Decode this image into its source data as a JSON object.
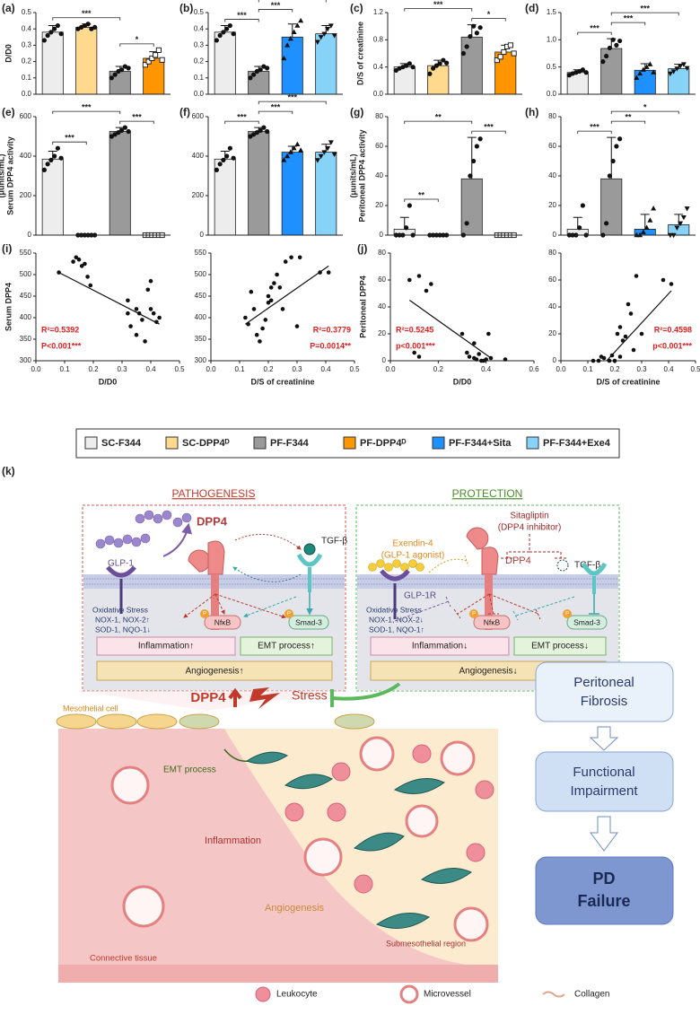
{
  "legend": [
    {
      "name": "SC-F344",
      "color": "#ededed",
      "marker": "circle"
    },
    {
      "name": "SC-DPP4ᴰ",
      "color": "#ffd98e",
      "marker": "circle"
    },
    {
      "name": "PF-F344",
      "color": "#9a9a9a",
      "marker": "circle"
    },
    {
      "name": "PF-DPP4ᴰ",
      "color": "#ff9500",
      "marker": "square-open"
    },
    {
      "name": "PF-F344+Sita",
      "color": "#1e90ff",
      "marker": "triangle"
    },
    {
      "name": "PF-F344+Exe4",
      "color": "#87d3f8",
      "marker": "triangle-down"
    }
  ],
  "chart_data": [
    {
      "type": "bar",
      "panel": "(a)",
      "ylabel": "D/D0",
      "groups": [
        "SC-F344",
        "SC-DPP4ᴰ",
        "PF-F344",
        "PF-DPP4ᴰ"
      ],
      "values": [
        0.38,
        0.41,
        0.14,
        0.22
      ],
      "errors": [
        0.04,
        0.02,
        0.03,
        0.04
      ],
      "points": [
        [
          0.33,
          0.36,
          0.38,
          0.4,
          0.42,
          0.37
        ],
        [
          0.4,
          0.41,
          0.42,
          0.43,
          0.4,
          0.41
        ],
        [
          0.1,
          0.12,
          0.14,
          0.15,
          0.17,
          0.16
        ],
        [
          0.18,
          0.2,
          0.22,
          0.24,
          0.27,
          0.21
        ]
      ],
      "ylim": [
        0,
        0.5
      ],
      "yticks": [
        {
          "value": 0,
          "label": "0.0"
        },
        0.1,
        0.2,
        0.3,
        0.4,
        0.5
      ],
      "significance": [
        {
          "from": "PF-F344",
          "to": "PF-DPP4ᴰ",
          "label": "*"
        },
        {
          "from": "SC-F344",
          "to": "PF-F344",
          "label": "***"
        }
      ]
    },
    {
      "type": "bar",
      "panel": "(b)",
      "groups": [
        "SC-F344",
        "PF-F344",
        "PF-F344+Sita",
        "PF-F344+Exe4"
      ],
      "values": [
        0.38,
        0.14,
        0.35,
        0.37
      ],
      "errors": [
        0.04,
        0.03,
        0.08,
        0.05
      ],
      "points": [
        [
          0.33,
          0.36,
          0.38,
          0.4,
          0.42,
          0.37
        ],
        [
          0.1,
          0.12,
          0.14,
          0.15,
          0.17,
          0.16
        ],
        [
          0.22,
          0.3,
          0.34,
          0.38,
          0.42,
          0.45
        ],
        [
          0.32,
          0.35,
          0.37,
          0.4,
          0.42,
          0.36
        ]
      ],
      "ylim": [
        0,
        0.5
      ],
      "yticks": [
        {
          "value": 0,
          "label": "0.0"
        },
        0.1,
        0.2,
        0.3,
        0.4,
        0.5
      ],
      "significance": [
        {
          "from": "SC-F344",
          "to": "PF-F344",
          "label": "***"
        },
        {
          "from": "PF-F344",
          "to": "PF-F344+Sita",
          "label": "***"
        },
        {
          "from": "PF-F344",
          "to": "PF-F344+Exe4",
          "label": "***"
        }
      ]
    },
    {
      "type": "bar",
      "panel": "(c)",
      "ylabel": "D/S of creatinine",
      "groups": [
        "SC-F344",
        "SC-DPP4ᴰ",
        "PF-F344",
        "PF-DPP4ᴰ"
      ],
      "values": [
        0.4,
        0.42,
        0.84,
        0.62
      ],
      "errors": [
        0.05,
        0.08,
        0.18,
        0.1
      ],
      "points": [
        [
          0.35,
          0.38,
          0.4,
          0.42,
          0.45,
          0.4
        ],
        [
          0.3,
          0.38,
          0.42,
          0.45,
          0.5,
          0.46
        ],
        [
          0.6,
          0.7,
          0.85,
          1.0,
          0.9,
          0.98
        ],
        [
          0.5,
          0.55,
          0.62,
          0.7,
          0.72,
          0.6
        ]
      ],
      "ylim": [
        0,
        1.2
      ],
      "yticks": [
        {
          "value": 0,
          "label": "0.0"
        },
        0.4,
        0.8,
        1.2
      ],
      "significance": [
        {
          "from": "PF-F344",
          "to": "PF-DPP4ᴰ",
          "label": "*"
        },
        {
          "from": "SC-F344",
          "to": "PF-F344",
          "label": "***"
        }
      ]
    },
    {
      "type": "bar",
      "panel": "(d)",
      "groups": [
        "SC-F344",
        "PF-F344",
        "PF-F344+Sita",
        "PF-F344+Exe4"
      ],
      "values": [
        0.4,
        0.84,
        0.44,
        0.47
      ],
      "errors": [
        0.05,
        0.18,
        0.12,
        0.08
      ],
      "points": [
        [
          0.35,
          0.38,
          0.4,
          0.42,
          0.45,
          0.4
        ],
        [
          0.6,
          0.7,
          0.85,
          1.0,
          0.9,
          0.98
        ],
        [
          0.3,
          0.38,
          0.45,
          0.5,
          0.55,
          0.4
        ],
        [
          0.38,
          0.42,
          0.47,
          0.52,
          0.55,
          0.48
        ]
      ],
      "ylim": [
        0,
        1.5
      ],
      "yticks": [
        {
          "value": 0,
          "label": "0.0"
        },
        0.5,
        {
          "value": 1,
          "label": "1.0"
        },
        1.5
      ],
      "significance": [
        {
          "from": "SC-F344",
          "to": "PF-F344",
          "label": "***"
        },
        {
          "from": "PF-F344",
          "to": "PF-F344+Sita",
          "label": "***"
        },
        {
          "from": "PF-F344",
          "to": "PF-F344+Exe4",
          "label": "***"
        }
      ]
    },
    {
      "type": "bar",
      "panel": "(e)",
      "ylabel": [
        "Serum DPP4 activity",
        "(μunits/mL)"
      ],
      "groups": [
        "SC-F344",
        "SC-DPP4ᴰ",
        "PF-F344",
        "PF-DPP4ᴰ"
      ],
      "values": [
        385,
        0,
        525,
        0
      ],
      "errors": [
        40,
        0,
        20,
        0
      ],
      "points": [
        [
          330,
          360,
          380,
          400,
          440,
          390
        ],
        [
          0,
          0,
          0,
          0,
          0,
          0
        ],
        [
          500,
          510,
          520,
          530,
          545,
          525
        ],
        [
          0,
          0,
          0,
          0,
          0,
          0
        ]
      ],
      "ylim": [
        0,
        600
      ],
      "yticks": [
        0,
        200,
        400,
        600
      ],
      "significance": [
        {
          "from": "SC-F344",
          "to": "SC-DPP4ᴰ",
          "label": "***"
        },
        {
          "from": "PF-F344",
          "to": "PF-DPP4ᴰ",
          "label": "***"
        },
        {
          "from": "SC-F344",
          "to": "PF-F344",
          "label": "***"
        }
      ]
    },
    {
      "type": "bar",
      "panel": "(f)",
      "groups": [
        "SC-F344",
        "PF-F344",
        "PF-F344+Sita",
        "PF-F344+Exe4"
      ],
      "values": [
        385,
        525,
        420,
        420
      ],
      "errors": [
        40,
        20,
        30,
        40
      ],
      "points": [
        [
          330,
          360,
          380,
          400,
          440,
          390
        ],
        [
          500,
          510,
          520,
          530,
          545,
          525
        ],
        [
          380,
          400,
          420,
          440,
          460,
          430
        ],
        [
          380,
          400,
          420,
          440,
          470,
          410
        ]
      ],
      "ylim": [
        0,
        600
      ],
      "yticks": [
        0,
        200,
        400,
        600
      ],
      "significance": [
        {
          "from": "SC-F344",
          "to": "PF-F344",
          "label": "***"
        },
        {
          "from": "PF-F344",
          "to": "PF-F344+Sita",
          "label": "***"
        },
        {
          "from": "PF-F344",
          "to": "PF-F344+Exe4",
          "label": "***"
        }
      ]
    },
    {
      "type": "bar",
      "panel": "(g)",
      "ylabel": [
        "Peritoneal DPP4 activity",
        "(μunits/mL)"
      ],
      "groups": [
        "SC-F344",
        "SC-DPP4ᴰ",
        "PF-F344",
        "PF-DPP4ᴰ"
      ],
      "values": [
        4,
        0,
        38,
        0
      ],
      "errors": [
        8,
        0,
        28,
        0
      ],
      "points": [
        [
          0,
          0,
          0,
          5,
          20,
          0
        ],
        [
          0,
          0,
          0,
          0,
          0,
          0
        ],
        [
          0,
          8,
          40,
          50,
          60,
          65
        ],
        [
          0,
          0,
          0,
          0,
          0,
          0
        ]
      ],
      "ylim": [
        0,
        80
      ],
      "yticks": [
        0,
        20,
        40,
        60,
        80
      ],
      "significance": [
        {
          "from": "SC-F344",
          "to": "SC-DPP4ᴰ",
          "label": "**"
        },
        {
          "from": "PF-F344",
          "to": "PF-DPP4ᴰ",
          "label": "***"
        },
        {
          "from": "SC-F344",
          "to": "PF-F344",
          "label": "**"
        }
      ]
    },
    {
      "type": "bar",
      "panel": "(h)",
      "groups": [
        "SC-F344",
        "PF-F344",
        "PF-F344+Sita",
        "PF-F344+Exe4"
      ],
      "values": [
        4,
        38,
        4,
        7
      ],
      "errors": [
        8,
        28,
        10,
        7
      ],
      "points": [
        [
          0,
          0,
          0,
          5,
          20,
          0
        ],
        [
          0,
          8,
          40,
          50,
          60,
          65
        ],
        [
          0,
          0,
          2,
          5,
          10,
          18
        ],
        [
          0,
          0,
          5,
          8,
          12,
          18
        ]
      ],
      "ylim": [
        0,
        80
      ],
      "yticks": [
        0,
        20,
        40,
        60,
        80
      ],
      "significance": [
        {
          "from": "SC-F344",
          "to": "PF-F344",
          "label": "***"
        },
        {
          "from": "PF-F344",
          "to": "PF-F344+Sita",
          "label": "**"
        },
        {
          "from": "PF-F344",
          "to": "PF-F344+Exe4",
          "label": "*"
        }
      ]
    },
    {
      "type": "scatter",
      "panel": "(i)",
      "xlabel": "D/D0",
      "ylabel": "Serum DPP4",
      "x": [
        0.08,
        0.13,
        0.14,
        0.15,
        0.16,
        0.17,
        0.18,
        0.19,
        0.32,
        0.32,
        0.33,
        0.35,
        0.36,
        0.37,
        0.38,
        0.39,
        0.4,
        0.4,
        0.41,
        0.42,
        0.43,
        0.35
      ],
      "y": [
        505,
        530,
        540,
        535,
        520,
        525,
        495,
        475,
        440,
        410,
        380,
        360,
        410,
        395,
        345,
        465,
        420,
        485,
        410,
        390,
        400,
        420
      ],
      "fit": {
        "x": [
          0.08,
          0.43
        ],
        "y": [
          505,
          385
        ]
      },
      "xlim": [
        0,
        0.5
      ],
      "xticks": [
        {
          "value": 0,
          "label": "0.0"
        },
        0.1,
        0.2,
        0.3,
        0.4,
        0.5
      ],
      "ylim": [
        300,
        550
      ],
      "yticks": [
        300,
        350,
        400,
        450,
        500,
        550
      ],
      "annotations": [
        "R²=0.5392",
        "P<0.001***"
      ]
    },
    {
      "type": "scatter",
      "xlabel": "D/S of creatinine",
      "x": [
        0.12,
        0.13,
        0.14,
        0.15,
        0.16,
        0.17,
        0.18,
        0.19,
        0.2,
        0.2,
        0.21,
        0.21,
        0.22,
        0.23,
        0.24,
        0.25,
        0.26,
        0.28,
        0.3,
        0.31,
        0.38,
        0.41
      ],
      "y": [
        400,
        385,
        460,
        420,
        360,
        345,
        375,
        395,
        435,
        450,
        440,
        470,
        480,
        500,
        470,
        420,
        530,
        540,
        380,
        540,
        505,
        505
      ],
      "fit": {
        "x": [
          0.12,
          0.41
        ],
        "y": [
          385,
          520
        ]
      },
      "xlim": [
        0,
        0.5
      ],
      "xticks": [
        {
          "value": 0,
          "label": "0.0"
        },
        0.1,
        0.2,
        0.3,
        0.4,
        0.5
      ],
      "ylim": [
        300,
        550
      ],
      "yticks": [
        300,
        350,
        400,
        450,
        500,
        550
      ],
      "annotations": [
        "R²=0.3779",
        "P=0.0014**"
      ]
    },
    {
      "type": "scatter",
      "panel": "(j)",
      "xlabel": "D/D0",
      "ylabel": "Peritoneal DPP4",
      "x": [
        0.08,
        0.12,
        0.15,
        0.17,
        0.1,
        0.12,
        0.3,
        0.32,
        0.33,
        0.35,
        0.36,
        0.37,
        0.38,
        0.39,
        0.4,
        0.41,
        0.42,
        0.48,
        0.35
      ],
      "y": [
        60,
        63,
        52,
        57,
        6,
        3,
        20,
        6,
        3,
        2,
        1,
        5,
        0,
        0,
        1,
        20,
        2,
        1,
        13
      ],
      "fit": {
        "x": [
          0.08,
          0.42
        ],
        "y": [
          45,
          2
        ]
      },
      "xlim": [
        0,
        0.6
      ],
      "xticks": [
        {
          "value": 0,
          "label": "0.0"
        },
        0.2,
        0.4,
        0.6
      ],
      "ylim": [
        0,
        80
      ],
      "yticks": [
        0,
        20,
        40,
        60,
        80
      ],
      "annotations": [
        "R²=0.5245",
        "p<0.001***"
      ]
    },
    {
      "type": "scatter",
      "xlabel": "D/S of creatinine",
      "x": [
        0.12,
        0.14,
        0.15,
        0.16,
        0.18,
        0.19,
        0.2,
        0.21,
        0.22,
        0.22,
        0.23,
        0.24,
        0.25,
        0.26,
        0.27,
        0.28,
        0.3,
        0.38,
        0.41
      ],
      "y": [
        0,
        0,
        3,
        2,
        0,
        4,
        0,
        20,
        3,
        25,
        15,
        18,
        42,
        35,
        8,
        63,
        20,
        60,
        57
      ],
      "fit": {
        "x": [
          0.17,
          0.41
        ],
        "y": [
          0,
          52
        ]
      },
      "xlim": [
        0,
        0.5
      ],
      "xticks": [
        {
          "value": 0,
          "label": "0.0"
        },
        0.1,
        0.2,
        0.3,
        0.4,
        0.5
      ],
      "ylim": [
        0,
        80
      ],
      "yticks": [
        0,
        20,
        40,
        60,
        80
      ],
      "annotations": [
        "R²=0.4598",
        "p<0.001***"
      ]
    }
  ],
  "diagram": {
    "panel": "(k)",
    "pathogenesis": {
      "title": "PATHOGENESIS",
      "glp1": "GLP-1",
      "dpp4": "DPP4",
      "tgfb": "TGF-β",
      "oxidative": "Oxidative Stress",
      "nox": "NOX-1, NOX-2↑",
      "sod": "SOD-1, NQO-1↓",
      "p": "P",
      "nfkb": "NfκB",
      "smad": "Smad-3",
      "inflammation": "Inflammation↑",
      "emt": "EMT process↑",
      "angiogenesis": "Angiogenesis↑"
    },
    "protection": {
      "title": "PROTECTION",
      "sitagliptin": "Sitagliptin",
      "sita_note": "(DPP4 inhibitor)",
      "exendin": "Exendin-4",
      "exendin_note": "(GLP-1 agonist)",
      "dpp4": "DPP4",
      "tgfb": "TGF-β",
      "glp1r": "GLP-1R",
      "oxidative": "Oxidative Stress",
      "nox": "NOX-1, NOX-2↓",
      "sod": "SOD-1, NQO-1↑",
      "p": "P",
      "nfkb": "NfκB",
      "smad": "Smad-3",
      "inflammation": "Inflammation↓",
      "emt": "EMT process↓",
      "angiogenesis": "Angiogenesis↓"
    },
    "tissue": {
      "dpp4": "DPP4",
      "stress": "Stress",
      "mesothelial": "Mesothelial cell",
      "emt": "EMT process",
      "inflammation": "Inflammation",
      "angiogenesis": "Angiogenesis",
      "connective": "Connective tissue",
      "submesothelial": "Submesothelial region"
    },
    "flow": [
      [
        "Peritoneal",
        "Fibrosis"
      ],
      [
        "Functional",
        "Impairment"
      ],
      [
        "PD",
        "Failure"
      ]
    ],
    "key": [
      "Leukocyte",
      "Microvessel",
      "Collagen"
    ]
  }
}
